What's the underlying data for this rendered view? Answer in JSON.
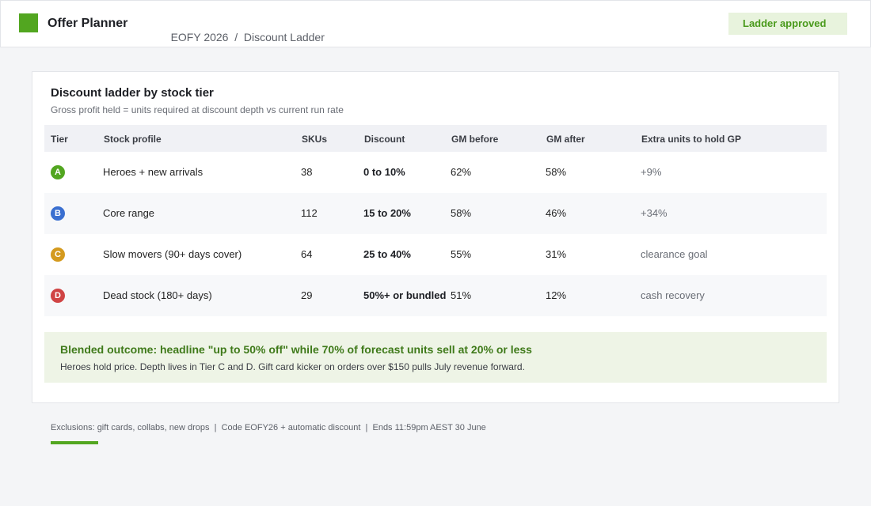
{
  "header": {
    "app_name": "Offer Planner",
    "breadcrumb": [
      "EOFY 2026",
      "/",
      "Discount Ladder"
    ],
    "status": "Ladder approved"
  },
  "card": {
    "title": "Discount ladder by stock tier",
    "subtitle": "Gross profit held = units required at discount depth vs current run rate",
    "table": {
      "columns": [
        "Tier",
        "Stock profile",
        "SKUs",
        "Discount",
        "GM before",
        "GM after",
        "Extra units to hold GP"
      ],
      "rows": [
        [
          "A",
          "Heroes + new arrivals",
          38,
          "0 to 10%",
          "62%",
          "58%",
          "+9%"
        ],
        [
          "B",
          "Core range",
          112,
          "15 to 20%",
          "58%",
          "46%",
          "+34%"
        ],
        [
          "C",
          "Slow movers (90+ days cover)",
          64,
          "25 to 40%",
          "55%",
          "31%",
          "clearance goal"
        ],
        [
          "D",
          "Dead stock (180+ days)",
          29,
          "50%+ or bundled",
          "51%",
          "12%",
          "cash recovery"
        ]
      ]
    },
    "callout": {
      "title": "Blended outcome: headline \"up to 50% off\" while 70% of forecast units sell at 20% or less",
      "body": "Heroes hold price. Depth lives in Tier C and D. Gift card kicker on orders over $150 pulls July revenue forward."
    }
  },
  "footer": "Exclusions: gift cards, collabs, new drops  |  Code EOFY26 + automatic discount  |  Ends 11:59pm AEST 30 June"
}
